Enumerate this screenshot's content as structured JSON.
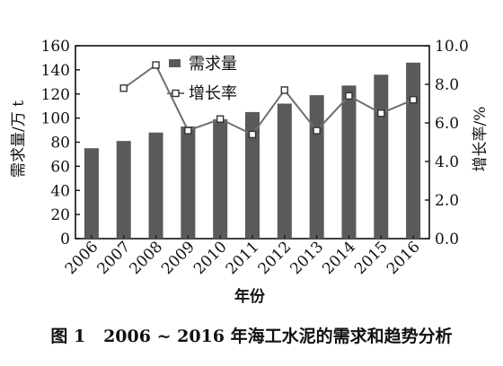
{
  "chart_data": {
    "type": "bar+line",
    "categories": [
      "2006",
      "2007",
      "2008",
      "2009",
      "2010",
      "2011",
      "2012",
      "2013",
      "2014",
      "2015",
      "2016"
    ],
    "series": [
      {
        "name": "需求量",
        "type": "bar",
        "axis": "left",
        "color": "#5a5a5a",
        "values": [
          75,
          81,
          88,
          93,
          99,
          105,
          112,
          119,
          127,
          136,
          146
        ]
      },
      {
        "name": "增长率",
        "type": "line",
        "axis": "right",
        "color": "#6f6f6f",
        "values": [
          null,
          7.8,
          9.0,
          5.6,
          6.2,
          5.4,
          7.7,
          5.6,
          7.4,
          6.5,
          7.2
        ]
      }
    ],
    "xlabel": "年份",
    "ylabel_left": "需求量/万 t",
    "ylabel_right": "增长率/%",
    "ylim_left": [
      0,
      160
    ],
    "ylim_right": [
      0.0,
      10.0
    ],
    "yticks_left": [
      "0",
      "20",
      "40",
      "60",
      "80",
      "100",
      "120",
      "140",
      "160"
    ],
    "yticks_right": [
      "0.0",
      "2.0",
      "4.0",
      "6.0",
      "8.0",
      "10.0"
    ],
    "grid": false,
    "legend_position": "top-left"
  },
  "caption": {
    "label": "图 1",
    "text": "2006 ~ 2016 年海工水泥的需求和趋势分析"
  }
}
